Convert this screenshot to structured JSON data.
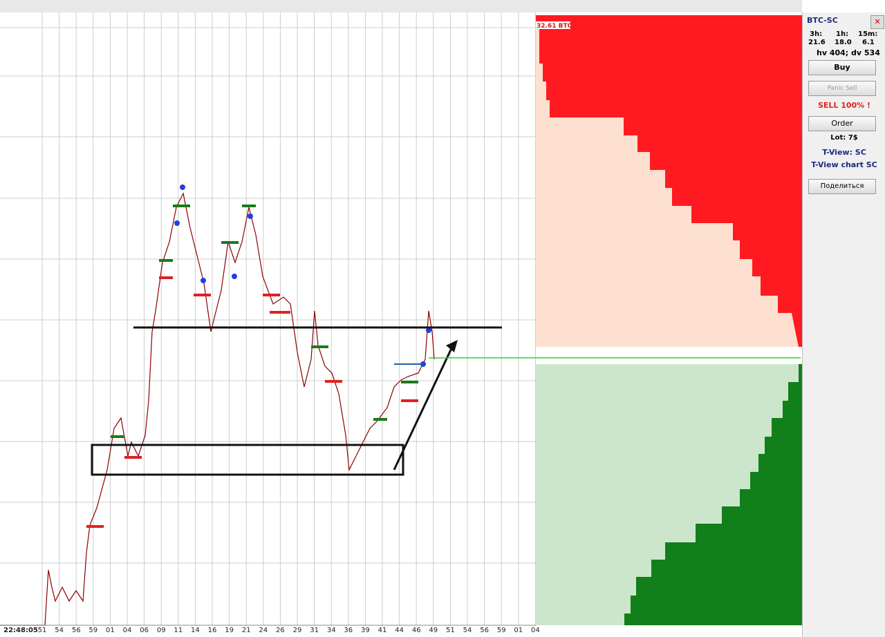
{
  "book": {
    "volume_label": "32.61 BTC"
  },
  "panel": {
    "symbol": "BTC-SC",
    "periods": [
      "3h:",
      "1h:",
      "15m:"
    ],
    "changes": [
      "21.6",
      "18.0",
      "6.1"
    ],
    "volume_info": "hv 404; dv 534",
    "buy": "Buy",
    "panic_sell": "Panic Sell",
    "sell_alert": "SELL 100% !",
    "order": "Order",
    "lot": "Lot: 7$",
    "tview": "T-View: SC",
    "tview_chart": "T-View chart SC",
    "share": "Поделиться",
    "close": "✕"
  },
  "time_axis": {
    "labels": [
      "22:48:05",
      "51",
      "54",
      "56",
      "59",
      "01",
      "04",
      "06",
      "09",
      "11",
      "14",
      "16",
      "19",
      "21",
      "24",
      "26",
      "29",
      "31",
      "34",
      "36",
      "39",
      "41",
      "44",
      "46",
      "49",
      "51",
      "54",
      "56",
      "59",
      "01",
      "04"
    ]
  }
}
